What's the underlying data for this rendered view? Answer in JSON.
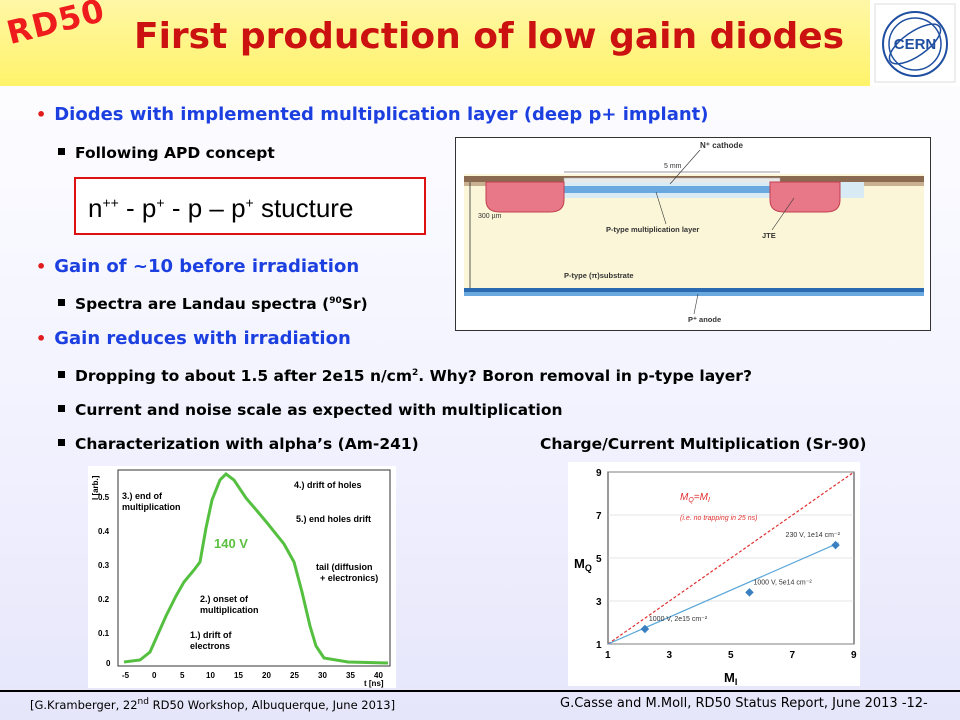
{
  "header": {
    "logo_left": "RD50",
    "title": "First production of low gain diodes",
    "logo_right": "CERN"
  },
  "bullets": {
    "b1": "Diodes with implemented multiplication layer (deep p+ implant)",
    "b1_sub": "Following APD concept",
    "b2": "Gain of ~10 before irradiation",
    "b2_sub_pre": "Spectra are Landau spectra (",
    "b2_sub_sup": "90",
    "b2_sub_post": "Sr)",
    "b3": "Gain reduces with irradiation",
    "b3_sub1_pre": "Dropping to about 1.5 after 2e15 n/cm",
    "b3_sub1_sup": "2",
    "b3_sub1_post": ". Why? Boron removal in p-type layer?",
    "b3_sub2": "Current and noise scale as expected with multiplication",
    "b3_sub3": "Characterization with alpha’s (Am-241)",
    "right_caption": "Charge/Current Multiplication (Sr-90)"
  },
  "structure": {
    "n": "n",
    "n_sup": "++",
    "d1": " - p",
    "p_sup": "+",
    "d2": " - p – p",
    "p2_sup": "+",
    "word": " stucture"
  },
  "device_figure": {
    "cathode": "N⁺ cathode",
    "width": "5 mm",
    "thickness": "300 µm",
    "mult_layer": "P-type multiplication layer",
    "jte": "JTE",
    "substrate": "P-type (π)substrate",
    "anode": "P⁺ anode"
  },
  "alpha_figure": {
    "ylabel": "I [arb.]",
    "xlabel": "t [ns]",
    "y_ticks": [
      "0.5",
      "0.4",
      "0.3",
      "0.2",
      "0.1",
      "0"
    ],
    "x_ticks": [
      "-5",
      "0",
      "5",
      "10",
      "15",
      "20",
      "25",
      "30",
      "35",
      "40"
    ],
    "voltage": "140 V",
    "a1": "1.) drift of",
    "a1b": "electrons",
    "a2": "2.) onset of",
    "a2b": "multiplication",
    "a3": "3.) end of",
    "a3b": "multiplication",
    "a4": "4.) drift of holes",
    "a5": "5.) end holes drift",
    "a6": "tail (diffusion",
    "a6b": "+ electronics)"
  },
  "chart_data": {
    "type": "scatter",
    "title": "",
    "xlabel": "M_I",
    "ylabel": "M_Q",
    "xlim": [
      1,
      9
    ],
    "ylim": [
      1,
      9
    ],
    "x_ticks": [
      "1",
      "3",
      "5",
      "7",
      "9"
    ],
    "y_ticks": [
      "9",
      "7",
      "5",
      "3",
      "1"
    ],
    "series": [
      {
        "name": "M_Q=M_I",
        "x": [
          1,
          9
        ],
        "y": [
          1,
          9
        ],
        "color": "#e03030",
        "style": "dashed"
      },
      {
        "name": "",
        "x": [
          1,
          8.5
        ],
        "y": [
          1,
          5.7
        ],
        "color": "#5aa6d8",
        "style": "solid"
      },
      {
        "name": "",
        "x": [
          2.2,
          5.6,
          8.4
        ],
        "y": [
          1.7,
          3.4,
          5.6
        ],
        "color": "#3a7fc0",
        "style": "markers"
      }
    ],
    "point_labels": [
      "1000 V, 2e15 cm⁻²",
      "1000 V, 5e14 cm⁻²",
      "230 V, 1e14 cm⁻²"
    ],
    "legend_label": "M",
    "legend_sub_q": "Q",
    "legend_eq": "=M",
    "legend_sub_i": "I",
    "legend_note": "(i.e. no trapping in 25 ns)"
  },
  "footer": {
    "left_pre": "[G.Kramberger, 22",
    "left_sup": "nd",
    "left_post": " RD50 Workshop, Albuquerque, June 2013]",
    "right": "G.Casse and M.Moll, RD50 Status Report, June 2013 -12-"
  }
}
